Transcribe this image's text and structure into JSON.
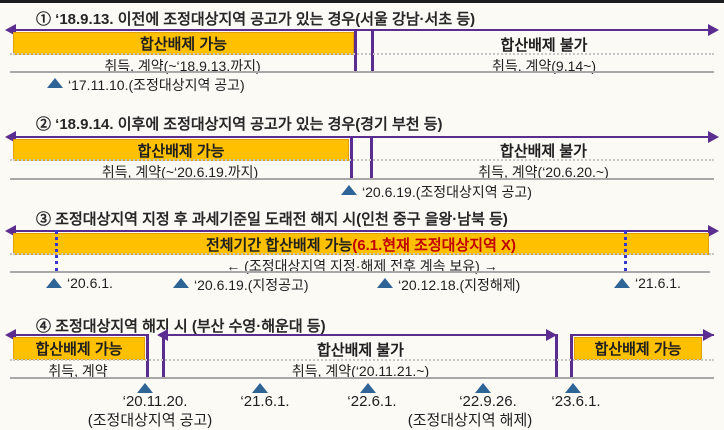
{
  "colors": {
    "accent_yellow": "#FFC000",
    "accent_purple": "#5B2D90",
    "red_text": "#C00000",
    "marker_blue": "#2F6496"
  },
  "sections": [
    {
      "title": "① ‘18.9.13. 이전에 조정대상지역 공고가 있는 경우(서울 강남·서초 등)",
      "left_header": "합산배제 가능",
      "right_header": "합산배제 불가",
      "left_body": "취득, 계약(~‘18.9.13.까지)",
      "right_body": "취득, 계약(9.14~)",
      "marker": "‘17.11.10.(조정대상지역 공고)"
    },
    {
      "title": "② ‘18.9.14. 이후에 조정대상지역 공고가 있는 경우(경기 부천 등)",
      "left_header": "합산배제 가능",
      "right_header": "합산배제 불가",
      "left_body": "취득, 계약(~‘20.6.19.까지)",
      "right_body": "취득, 계약(‘20.6.20.~)",
      "marker": "‘20.6.19.(조정대상지역 공고)"
    },
    {
      "title": "③ 조정대상지역 지정 후 과세기준일 도래전 해지 시(인천 중구 을왕·남북 등)",
      "band_main": "전체기간 합산배제 가능",
      "band_red": "(6.1.현재 조정대상지역 X)",
      "center_note": "← (조정대상지역 지정·해제 전후 계속 보유) →",
      "markers": [
        "‘20.6.1.",
        "‘20.6.19.(지정공고)",
        "‘20.12.18.(지정해제)",
        "‘21.6.1."
      ]
    },
    {
      "title": "④ 조정대상지역 해지 시 (부산 수영·해운대 등)",
      "left_header": "합산배제 가능",
      "mid_header": "합산배제 불가",
      "right_header": "합산배제 가능",
      "left_body": "취득, 계약",
      "mid_body": "취득, 계약(‘20.11.21.~)",
      "dates": [
        "‘20.11.20.",
        "‘21.6.1.",
        "‘22.6.1.",
        "‘22.9.26.",
        "‘23.6.1."
      ],
      "sub_announce": "(조정대상지역 공고)",
      "sub_release": "(조정대상지역 해제)"
    }
  ]
}
